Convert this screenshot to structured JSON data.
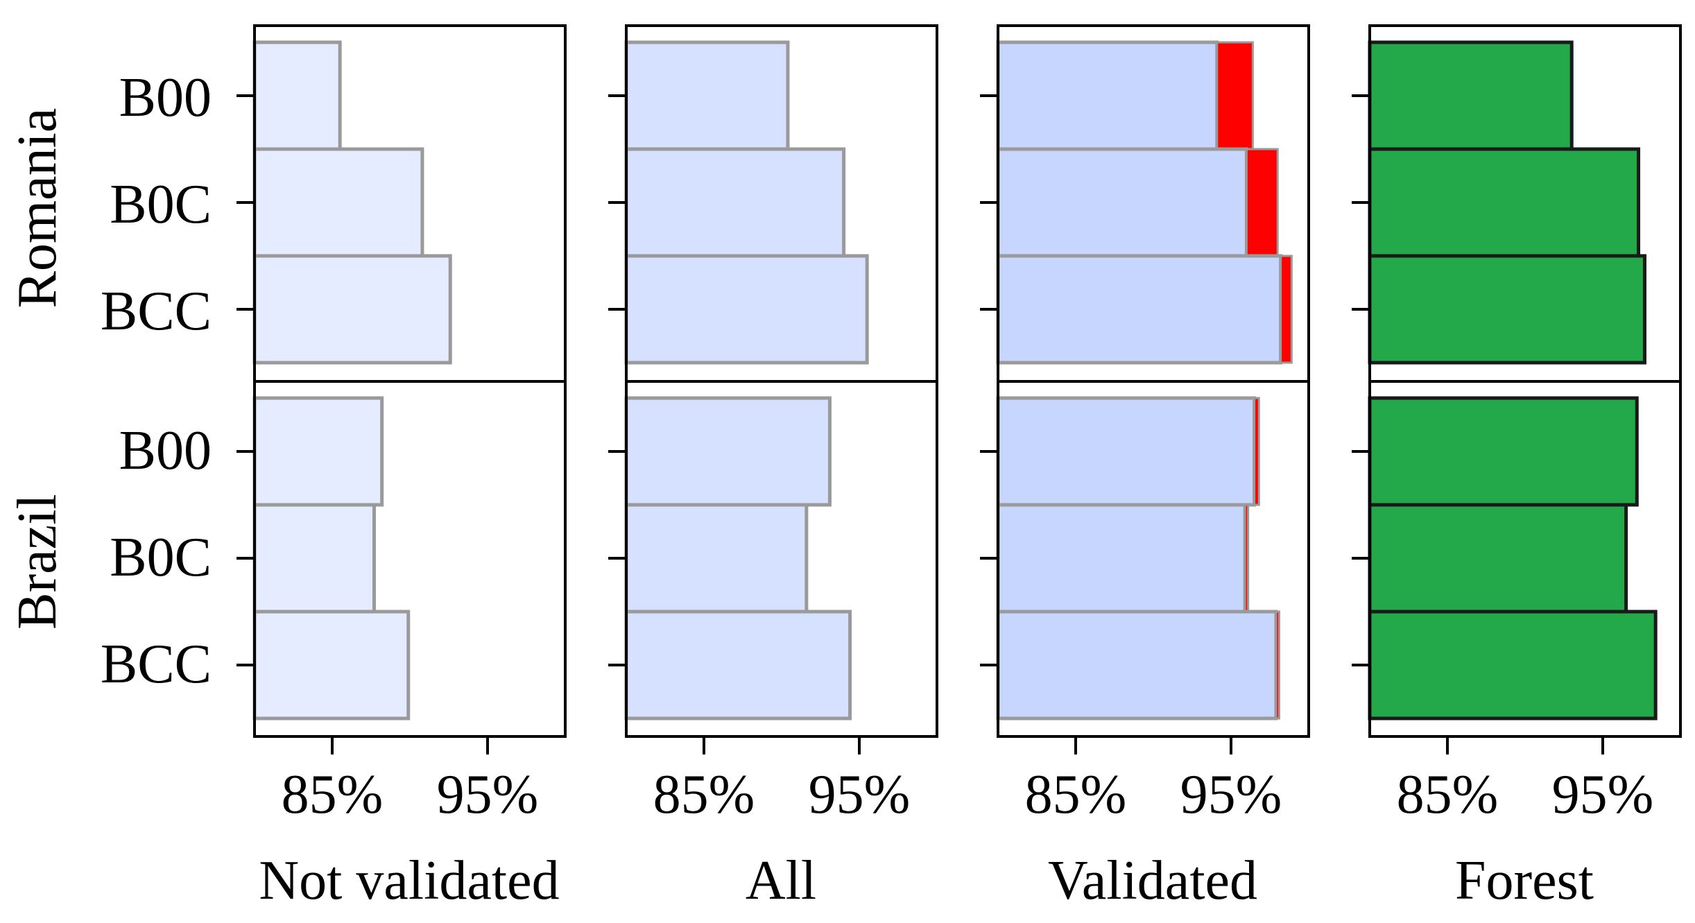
{
  "chart_data": {
    "type": "bar",
    "orientation": "horizontal",
    "xlim": [
      80,
      100
    ],
    "xticks": [
      85,
      95
    ],
    "xtick_labels": [
      "85%",
      "95%"
    ],
    "categories": [
      "B00",
      "B0C",
      "BCC"
    ],
    "rows": [
      {
        "label": "Romania",
        "key": "romania"
      },
      {
        "label": "Brazil",
        "key": "brazil"
      }
    ],
    "panels": [
      {
        "title": "Not validated",
        "key": "not_validated",
        "romania": {
          "B00": 85.5,
          "B0C": 90.8,
          "BCC": 92.6
        },
        "brazil": {
          "B00": 88.2,
          "B0C": 87.7,
          "BCC": 89.9
        }
      },
      {
        "title": "All",
        "key": "all",
        "romania": {
          "B00": 90.4,
          "B0C": 94.0,
          "BCC": 95.5
        },
        "brazil": {
          "B00": 93.1,
          "B0C": 91.6,
          "BCC": 94.4
        }
      },
      {
        "title": "Validated",
        "key": "validated",
        "romania": {
          "B00": 94.1,
          "B0C": 96.0,
          "BCC": 98.2
        },
        "brazil": {
          "B00": 96.5,
          "B0C": 95.9,
          "BCC": 97.9
        },
        "romania_gain": {
          "B00": 2.3,
          "B0C": 2.0,
          "BCC": 0.7
        },
        "brazil_gain": {
          "B00": 0.3,
          "B0C": 0.2,
          "BCC": 0.2
        }
      },
      {
        "title": "Forest",
        "key": "forest",
        "romania": {
          "B00": 93.0,
          "B0C": 97.3,
          "BCC": 97.7
        },
        "brazil": {
          "B00": 97.2,
          "B0C": 96.5,
          "BCC": 98.4
        }
      }
    ],
    "colors": {
      "not_validated": "#e6ecff",
      "all": "#d6e0ff",
      "validated": "#c7d6ff",
      "gain": "#ff0000",
      "forest": "#23a84a",
      "edge_light": "#9a9a9a",
      "edge_dark": "#1a1a1a"
    }
  }
}
